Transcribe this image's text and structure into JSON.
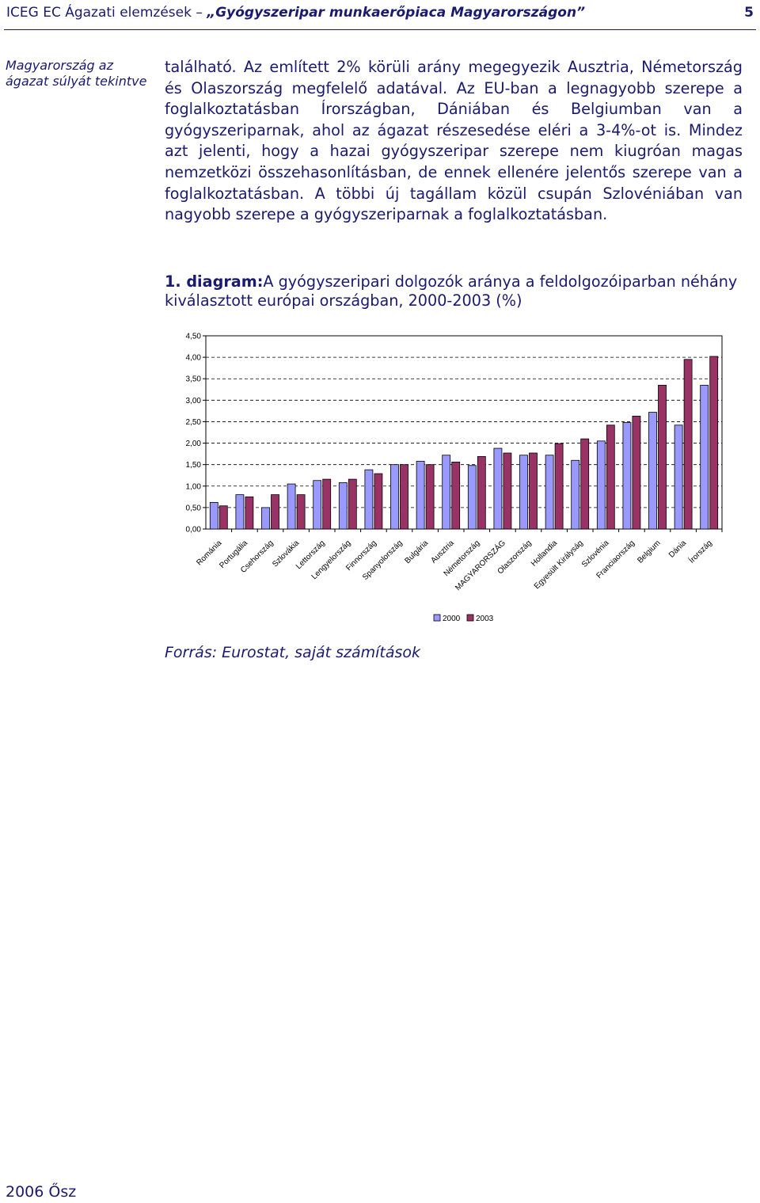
{
  "header": {
    "publication": "ICEG EC Ágazati elemzések – ",
    "title": "„Gyógyszeripar munkaerőpiaca Magyarországon”",
    "page_number": "5"
  },
  "margin_note": "Magyarország az ágazat súlyát tekintve",
  "body_paragraph": "található. Az említett 2% körüli arány megegyezik Ausztria, Németország és Olaszország megfelelő adatával. Az EU-ban a legnagyobb szerepe a foglalkoztatásban Írországban, Dániában és Belgiumban van a gyógyszeriparnak, ahol az ágazat részesedése eléri a 3-4%-ot is. Mindez azt jelenti, hogy a hazai gyógyszeripar szerepe nem kiugróan magas nemzetközi összehasonlításban, de ennek ellenére jelentős szerepe van a foglalkoztatásban. A többi új tagállam közül csupán Szlovéniában van nagyobb szerepe a gyógyszeriparnak a foglalkoztatásban.",
  "chart_caption": {
    "label": "1. diagram:",
    "text": "A gyógyszeripari dolgozók aránya a feldolgozóiparban néhány kiválasztott európai országban, 2000-2003 (%)"
  },
  "chart_data": {
    "type": "bar",
    "categories": [
      "Románia",
      "Portugália",
      "Csehország",
      "Szlovákia",
      "Lettország",
      "Lengyelország",
      "Finnország",
      "Spanyolország",
      "Bulgária",
      "Ausztria",
      "Németország",
      "MAGYARORSZÁG",
      "Olaszország",
      "Hollandia",
      "Egyesült Királyság",
      "Szlovénia",
      "Franciaország",
      "Belgium",
      "Dánia",
      "Írország"
    ],
    "series": [
      {
        "name": "2000",
        "color": "#9999ff",
        "values": [
          0.62,
          0.8,
          0.5,
          1.05,
          1.13,
          1.08,
          1.38,
          1.5,
          1.58,
          1.72,
          1.48,
          1.88,
          1.72,
          1.72,
          1.6,
          2.05,
          2.48,
          2.72,
          2.42,
          3.35
        ]
      },
      {
        "name": "2003",
        "color": "#993366",
        "values": [
          0.54,
          0.75,
          0.8,
          0.8,
          1.16,
          1.16,
          1.29,
          1.5,
          1.5,
          1.56,
          1.69,
          1.77,
          1.77,
          1.99,
          2.1,
          2.42,
          2.63,
          3.35,
          3.95,
          4.02
        ]
      }
    ],
    "y_ticks": [
      "0,00",
      "0,50",
      "1,00",
      "1,50",
      "2,00",
      "2,50",
      "3,00",
      "3,50",
      "4,00",
      "4,50"
    ],
    "ylim": [
      0,
      4.5
    ],
    "grid": true,
    "legend_position": "bottom"
  },
  "source": "Forrás: Eurostat, saját számítások",
  "footer_date": "2006 Ősz"
}
